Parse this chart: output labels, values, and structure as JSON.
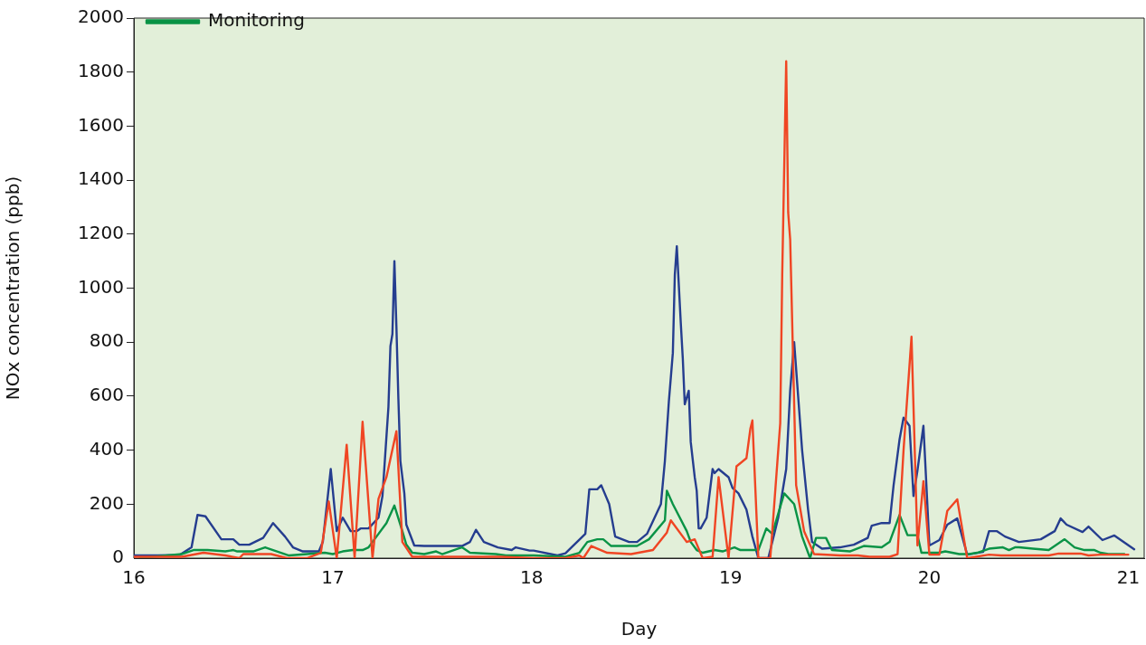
{
  "chart_data": {
    "type": "line",
    "xlabel": "Day",
    "ylabel": "NOx concentration (ppb)",
    "xlim": [
      16,
      21.08
    ],
    "xticks": [
      16,
      17,
      18,
      19,
      20,
      21
    ],
    "ylim": [
      0,
      2000
    ],
    "yticks": [
      0,
      200,
      400,
      600,
      800,
      1000,
      1200,
      1400,
      1600,
      1800,
      2000
    ],
    "grid": false,
    "legend": "top left",
    "marker": "none",
    "line_style": "solid",
    "series": [
      {
        "color": "#253d8f",
        "x": [
          16.0,
          16.12,
          16.23,
          16.29,
          16.32,
          16.36,
          16.44,
          16.5,
          16.53,
          16.58,
          16.65,
          16.7,
          16.76,
          16.8,
          16.85,
          16.93,
          16.95,
          16.99,
          17.02,
          17.05,
          17.09,
          17.12,
          17.14,
          17.18,
          17.23,
          17.25,
          17.28,
          17.29,
          17.3,
          17.31,
          17.32,
          17.33,
          17.34,
          17.36,
          17.37,
          17.41,
          17.46,
          17.65,
          17.69,
          17.72,
          17.76,
          17.83,
          17.9,
          17.92,
          17.99,
          18.01,
          18.13,
          18.17,
          18.27,
          18.29,
          18.33,
          18.35,
          18.39,
          18.42,
          18.49,
          18.53,
          18.58,
          18.65,
          18.67,
          18.69,
          18.71,
          18.72,
          18.73,
          18.75,
          18.76,
          18.77,
          18.79,
          18.8,
          18.82,
          18.83,
          18.84,
          18.85,
          18.88,
          18.91,
          18.92,
          18.94,
          18.99,
          19.01,
          19.04,
          19.08,
          19.11,
          19.14,
          19.15,
          19.19,
          19.24,
          19.28,
          19.3,
          19.32,
          19.34,
          19.36,
          19.39,
          19.41,
          19.46,
          19.55,
          19.62,
          19.69,
          19.71,
          19.76,
          19.8,
          19.82,
          19.85,
          19.87,
          19.9,
          19.92,
          19.94,
          19.97,
          20.0,
          20.05,
          20.09,
          20.14,
          20.19,
          20.27,
          20.3,
          20.34,
          20.38,
          20.45,
          20.56,
          20.63,
          20.66,
          20.69,
          20.77,
          20.8,
          20.87,
          20.93,
          21.03
        ],
        "values": [
          10,
          10,
          12,
          40,
          160,
          155,
          70,
          70,
          50,
          50,
          75,
          130,
          80,
          40,
          25,
          25,
          60,
          330,
          100,
          150,
          100,
          100,
          110,
          110,
          150,
          230,
          560,
          785,
          830,
          1100,
          860,
          590,
          360,
          240,
          124,
          47,
          45,
          45,
          60,
          105,
          60,
          40,
          30,
          40,
          28,
          28,
          10,
          18,
          90,
          255,
          255,
          270,
          200,
          80,
          60,
          60,
          90,
          200,
          360,
          580,
          760,
          1050,
          1155,
          870,
          740,
          570,
          620,
          430,
          300,
          250,
          110,
          110,
          150,
          330,
          315,
          330,
          300,
          260,
          240,
          180,
          80,
          0,
          0,
          0,
          150,
          330,
          620,
          800,
          600,
          400,
          180,
          60,
          35,
          40,
          50,
          75,
          120,
          130,
          130,
          270,
          440,
          520,
          490,
          230,
          325,
          490,
          47,
          67,
          124,
          147,
          13,
          23,
          100,
          100,
          80,
          60,
          70,
          100,
          147,
          124,
          97,
          117,
          67,
          84,
          33
        ]
      },
      {
        "name": "Monitoring",
        "color": "#0a9346",
        "x": [
          16.03,
          16.24,
          16.28,
          16.3,
          16.37,
          16.46,
          16.5,
          16.52,
          16.6,
          16.66,
          16.78,
          16.87,
          16.96,
          17.0,
          17.05,
          17.1,
          17.15,
          17.18,
          17.22,
          17.27,
          17.31,
          17.35,
          17.37,
          17.4,
          17.46,
          17.52,
          17.55,
          17.65,
          17.69,
          17.82,
          17.87,
          18.01,
          18.17,
          18.24,
          18.28,
          18.33,
          18.36,
          18.4,
          18.53,
          18.59,
          18.67,
          18.68,
          18.71,
          18.78,
          18.8,
          18.83,
          18.86,
          18.92,
          18.96,
          19.02,
          19.05,
          19.14,
          19.18,
          19.21,
          19.27,
          19.32,
          19.36,
          19.4,
          19.43,
          19.48,
          19.51,
          19.6,
          19.67,
          19.76,
          19.8,
          19.85,
          19.89,
          19.94,
          19.96,
          20.05,
          20.08,
          20.15,
          20.2,
          20.24,
          20.3,
          20.37,
          20.4,
          20.43,
          20.45,
          20.52,
          20.6,
          20.68,
          20.73,
          20.78,
          20.83,
          20.86,
          20.9,
          20.98
        ],
        "values": [
          0,
          15,
          25,
          30,
          30,
          25,
          30,
          25,
          25,
          40,
          10,
          15,
          20,
          15,
          25,
          30,
          30,
          40,
          80,
          130,
          195,
          100,
          50,
          20,
          15,
          25,
          15,
          40,
          20,
          15,
          10,
          10,
          5,
          20,
          60,
          70,
          70,
          45,
          45,
          70,
          140,
          250,
          200,
          100,
          60,
          30,
          20,
          30,
          25,
          40,
          30,
          30,
          110,
          90,
          240,
          200,
          80,
          0,
          75,
          75,
          30,
          25,
          45,
          40,
          60,
          160,
          85,
          85,
          20,
          20,
          25,
          15,
          15,
          20,
          35,
          40,
          30,
          40,
          40,
          35,
          30,
          70,
          40,
          30,
          30,
          20,
          15,
          15
        ]
      },
      {
        "color": "#f04523",
        "x": [
          16.0,
          16.24,
          16.35,
          16.46,
          16.53,
          16.55,
          16.69,
          16.77,
          16.87,
          16.94,
          16.98,
          17.02,
          17.07,
          17.11,
          17.15,
          17.2,
          17.23,
          17.27,
          17.32,
          17.35,
          17.4,
          17.6,
          17.85,
          18.01,
          18.17,
          18.24,
          18.26,
          18.3,
          18.38,
          18.5,
          18.61,
          18.68,
          18.7,
          18.78,
          18.82,
          18.86,
          18.91,
          18.94,
          18.99,
          19.03,
          19.08,
          19.1,
          19.11,
          19.14,
          19.2,
          19.25,
          19.26,
          19.28,
          19.29,
          19.3,
          19.33,
          19.37,
          19.42,
          19.55,
          19.64,
          19.7,
          19.8,
          19.84,
          19.87,
          19.91,
          19.94,
          19.97,
          20.0,
          20.05,
          20.09,
          20.14,
          20.19,
          20.3,
          20.36,
          20.6,
          20.65,
          20.76,
          20.8,
          20.86,
          21.0
        ],
        "values": [
          5,
          5,
          20,
          10,
          0,
          15,
          15,
          0,
          0,
          20,
          210,
          0,
          420,
          0,
          505,
          0,
          220,
          300,
          470,
          60,
          5,
          5,
          5,
          0,
          0,
          10,
          0,
          45,
          20,
          15,
          30,
          95,
          140,
          60,
          70,
          0,
          5,
          300,
          0,
          340,
          370,
          480,
          510,
          0,
          0,
          500,
          1050,
          1840,
          1280,
          1180,
          270,
          100,
          15,
          10,
          10,
          5,
          5,
          15,
          400,
          820,
          47,
          285,
          13,
          13,
          175,
          218,
          0,
          13,
          10,
          10,
          17,
          17,
          10,
          13,
          13
        ]
      }
    ]
  }
}
